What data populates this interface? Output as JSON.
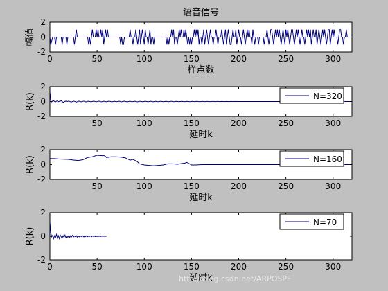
{
  "figure": {
    "background": "#c0c0c0",
    "axes_bg": "#ffffff",
    "line_color": "#00007f"
  },
  "watermark": "http://blog.csdn.net/ARPOSPF",
  "chart_data": [
    {
      "type": "line",
      "title": "语音信号",
      "xlabel": "样点数",
      "ylabel": "幅值",
      "xlim": [
        0,
        320
      ],
      "ylim": [
        -2,
        2
      ],
      "xticks": [
        0,
        50,
        100,
        150,
        200,
        250,
        300
      ],
      "yticks": [
        -2,
        0,
        2
      ],
      "legend": "",
      "series": [
        {
          "values": [
            0,
            -1,
            -0.5,
            0,
            0,
            0,
            -1,
            0,
            0,
            0,
            0,
            0,
            0,
            -1,
            0,
            0,
            0,
            0,
            -1,
            0,
            0,
            0,
            0,
            0,
            0,
            0,
            -1,
            0,
            1,
            0,
            0,
            0,
            0,
            0,
            0,
            0,
            0,
            0,
            0,
            0,
            0,
            -1,
            0,
            -1,
            0,
            1,
            0,
            0,
            0,
            1,
            0,
            1,
            0,
            0,
            1,
            0,
            1,
            -1,
            0,
            1,
            0,
            1,
            0,
            0,
            0,
            0,
            0,
            0,
            0,
            0,
            0,
            0,
            0,
            0,
            0,
            -1,
            0,
            -1,
            -1,
            0,
            0,
            0,
            0,
            0,
            0,
            1,
            0,
            0,
            -1,
            0,
            0,
            1,
            0,
            -1,
            0,
            1,
            -1,
            0,
            1,
            0,
            -1,
            1,
            0,
            0,
            -1,
            0,
            1,
            -1,
            0,
            0,
            -1,
            0,
            0,
            0,
            0,
            0,
            0,
            0,
            0,
            0,
            0,
            0,
            0,
            0,
            -1,
            0,
            -1,
            0,
            0,
            1,
            0,
            1,
            -1,
            0,
            0,
            -1,
            0,
            1,
            0,
            1,
            0,
            0,
            1,
            0,
            1,
            0,
            -1,
            0,
            -1,
            0,
            -1,
            0,
            0,
            1,
            0,
            1,
            0,
            1,
            -1,
            0,
            0,
            -1,
            0,
            1,
            -1,
            0,
            1,
            0,
            -1,
            0,
            1,
            0,
            0,
            -1,
            0,
            0,
            1,
            0,
            -1,
            0,
            0,
            0,
            1,
            0,
            -1,
            0,
            1,
            -1,
            0,
            1,
            0,
            -1,
            -1,
            0,
            1,
            0,
            0,
            1,
            -1,
            0,
            1,
            0,
            0,
            -1,
            0,
            1,
            0,
            -1,
            0,
            1,
            0,
            1,
            0,
            0,
            -1,
            1,
            0,
            -1,
            0,
            0,
            0,
            -1,
            0,
            0,
            0,
            0,
            0,
            -1,
            0,
            0,
            1,
            0,
            -1,
            0,
            1,
            1,
            0,
            -1,
            0,
            1,
            0,
            1,
            0,
            1,
            0,
            -1,
            0,
            1,
            0,
            -1,
            1,
            0,
            1,
            0,
            -1,
            0,
            1,
            1,
            0,
            -1,
            0,
            1,
            0,
            1,
            0,
            -1,
            0,
            1,
            0,
            0,
            -1,
            0,
            1,
            0,
            1,
            0,
            1,
            -1,
            0,
            1,
            0,
            0,
            1,
            -1,
            0,
            1,
            0,
            -1,
            0,
            1,
            0,
            1,
            0,
            -1,
            0,
            1,
            1,
            -1,
            0,
            1,
            0,
            1,
            0,
            0,
            0,
            -1,
            0,
            1,
            1,
            0,
            0,
            -1,
            0,
            0,
            1,
            0,
            0,
            0,
            0,
            0,
            0,
            0,
            1,
            0,
            0,
            0,
            0,
            0,
            0,
            0
          ]
        }
      ]
    },
    {
      "type": "line",
      "xlabel": "延时k",
      "ylabel": "R(k)",
      "xlim": [
        0,
        320
      ],
      "ylim": [
        -2,
        2
      ],
      "xticks": [
        50,
        100,
        150,
        200,
        250,
        300
      ],
      "yticks": [
        -2,
        0,
        2
      ],
      "legend_placement": "top-right",
      "series": [
        {
          "name": "N=320",
          "values": [
            1.3,
            0.1,
            -0.05,
            0.08,
            0.1,
            0,
            -0.05,
            0.05,
            0.08,
            -0.03,
            0.02,
            0.05,
            0.1,
            0,
            -0.1,
            -0.05,
            0.02,
            0.05,
            -0.02,
            0.03,
            0.06,
            0.02,
            -0.04,
            -0.06,
            0,
            0.05,
            0.03,
            -0.02,
            -0.08,
            -0.03,
            0.02,
            0.04,
            0,
            -0.03,
            -0.02,
            0.03,
            0.05,
            0.01,
            -0.04,
            -0.03,
            0.02,
            0.04,
            0.02,
            -0.02,
            -0.03,
            0.01,
            0.03,
            0.04,
            0,
            -0.03,
            -0.01,
            0.03,
            0.05,
            0.02,
            -0.02,
            -0.03,
            0.01,
            0.03,
            0.02,
            -0.01,
            -0.03,
            0,
            0.03,
            0.04,
            0.01,
            -0.02,
            -0.03,
            0,
            0.03,
            0.02,
            -0.01,
            -0.02,
            0.01,
            0.03,
            0.02,
            -0.02,
            -0.03,
            0,
            0.02,
            0.04,
            0.01,
            -0.02,
            -0.04,
            -0.01,
            0.02,
            0.03,
            0,
            -0.02,
            -0.01,
            0.01,
            0.03,
            0.01,
            -0.02,
            -0.03,
            0,
            0.02,
            0.02,
            0,
            -0.02,
            -0.02,
            0.01,
            0.03,
            0.01,
            -0.01,
            -0.03,
            -0.01,
            0.02,
            0.03,
            0,
            -0.02,
            -0.02,
            0.01,
            0.02,
            0.01,
            -0.01,
            -0.02,
            0,
            0.02,
            0.02,
            0,
            -0.02,
            -0.01,
            0.01,
            0.02,
            0.01,
            -0.01,
            -0.02,
            0,
            0.02,
            0.02,
            0,
            -0.02,
            -0.01,
            0.01,
            0.02,
            0.01,
            -0.01,
            -0.02,
            0,
            0.01,
            0.02,
            0,
            -0.01,
            -0.02,
            0,
            0.02,
            0.01,
            0,
            -0.02,
            -0.01,
            0.01,
            0.02,
            0,
            -0.01,
            -0.01,
            0.01,
            0.02,
            0,
            -0.01,
            -0.02,
            0,
            0.01,
            0.01,
            0,
            -0.01,
            -0.01,
            0.01,
            0.01,
            0,
            -0.01,
            -0.01,
            0,
            0.01,
            0.01,
            0,
            -0.01,
            0,
            0.01,
            0.01,
            0,
            -0.01,
            0,
            0.01,
            0,
            0,
            -0.01,
            0,
            0.01,
            0,
            0,
            -0.01,
            0,
            0.01,
            0,
            0,
            0,
            0,
            0.01,
            0,
            0,
            0,
            0,
            0,
            0,
            0,
            0,
            0,
            0,
            0,
            0,
            0,
            0,
            0,
            0,
            0,
            0,
            0,
            0,
            0,
            0,
            0,
            0,
            0,
            0,
            0,
            0,
            0,
            0,
            0,
            0,
            0,
            0,
            0,
            0,
            0,
            0,
            0,
            0,
            0,
            0,
            0,
            0,
            0,
            0,
            0,
            0,
            0,
            0,
            0,
            0,
            0,
            0,
            0,
            0,
            0,
            0,
            0,
            0,
            0,
            0,
            0,
            0,
            0,
            0,
            0,
            0,
            0,
            0,
            0,
            0,
            0,
            0,
            0,
            0,
            0,
            0,
            0,
            0,
            0,
            0,
            0,
            0,
            0,
            0,
            0,
            0,
            0,
            0,
            0,
            0,
            0,
            0,
            0,
            0,
            0,
            0,
            0,
            0,
            0,
            0,
            0,
            0,
            0,
            0,
            0,
            0,
            0,
            0,
            0,
            0,
            0,
            0,
            0,
            0,
            0,
            0,
            0,
            0,
            0,
            0,
            0,
            0,
            0,
            0,
            0,
            0,
            0,
            0,
            0,
            0,
            0,
            0,
            0,
            0,
            0,
            0,
            0,
            0,
            0
          ]
        }
      ]
    },
    {
      "type": "line",
      "xlabel": "延时k",
      "ylabel": "R(k)",
      "xlim": [
        0,
        320
      ],
      "ylim": [
        -2,
        2
      ],
      "xticks": [
        50,
        100,
        150,
        200,
        250,
        300
      ],
      "yticks": [
        -2,
        0,
        2
      ],
      "legend_placement": "top-right",
      "series": [
        {
          "name": "N=160",
          "points": [
            [
              0,
              0.8
            ],
            [
              5,
              0.8
            ],
            [
              10,
              0.75
            ],
            [
              20,
              0.7
            ],
            [
              25,
              0.6
            ],
            [
              30,
              0.55
            ],
            [
              35,
              0.65
            ],
            [
              40,
              0.95
            ],
            [
              45,
              1.05
            ],
            [
              50,
              1.25
            ],
            [
              55,
              1.2
            ],
            [
              58,
              1.2
            ],
            [
              60,
              0.95
            ],
            [
              65,
              1.05
            ],
            [
              70,
              1.05
            ],
            [
              75,
              1.0
            ],
            [
              80,
              0.9
            ],
            [
              85,
              0.6
            ],
            [
              88,
              0.7
            ],
            [
              92,
              0.45
            ],
            [
              95,
              0.1
            ],
            [
              100,
              -0.05
            ],
            [
              105,
              -0.1
            ],
            [
              110,
              -0.15
            ],
            [
              115,
              -0.1
            ],
            [
              120,
              -0.05
            ],
            [
              125,
              0.1
            ],
            [
              130,
              0.1
            ],
            [
              135,
              0.05
            ],
            [
              140,
              0.15
            ],
            [
              143,
              0.2
            ],
            [
              145,
              0.3
            ],
            [
              148,
              0.1
            ],
            [
              150,
              -0.05
            ],
            [
              155,
              -0.05
            ],
            [
              160,
              0
            ],
            [
              165,
              0
            ],
            [
              320,
              0
            ]
          ]
        }
      ]
    },
    {
      "type": "line",
      "xlabel": "延时k",
      "ylabel": "R(k)",
      "xlim": [
        0,
        320
      ],
      "ylim": [
        -2,
        2
      ],
      "xticks": [
        0,
        50,
        100,
        150,
        200,
        250,
        300
      ],
      "yticks": [
        -2,
        0,
        2
      ],
      "legend_placement": "top-right",
      "series": [
        {
          "name": "N=70",
          "values": [
            1.2,
            0.25,
            -0.05,
            0.1,
            -0.2,
            0.05,
            -0.1,
            0.15,
            -0.15,
            0.05,
            -0.2,
            0.1,
            -0.05,
            -0.15,
            0.05,
            -0.1,
            0.1,
            -0.12,
            0.02,
            -0.08,
            0.06,
            -0.1,
            0.05,
            -0.05,
            0.08,
            -0.06,
            0.02,
            -0.04,
            0.05,
            -0.08,
            0.03,
            -0.05,
            0.06,
            -0.02,
            -0.04,
            0.04,
            -0.06,
            0.02,
            -0.03,
            0.05,
            -0.04,
            0.02,
            -0.02,
            0.03,
            -0.05,
            0.02,
            -0.01,
            0.03,
            -0.03,
            0.01,
            -0.02,
            0.02,
            -0.01,
            0.02,
            -0.02,
            0.01,
            -0.01,
            0.01,
            0,
            0,
            0
          ]
        }
      ]
    }
  ]
}
